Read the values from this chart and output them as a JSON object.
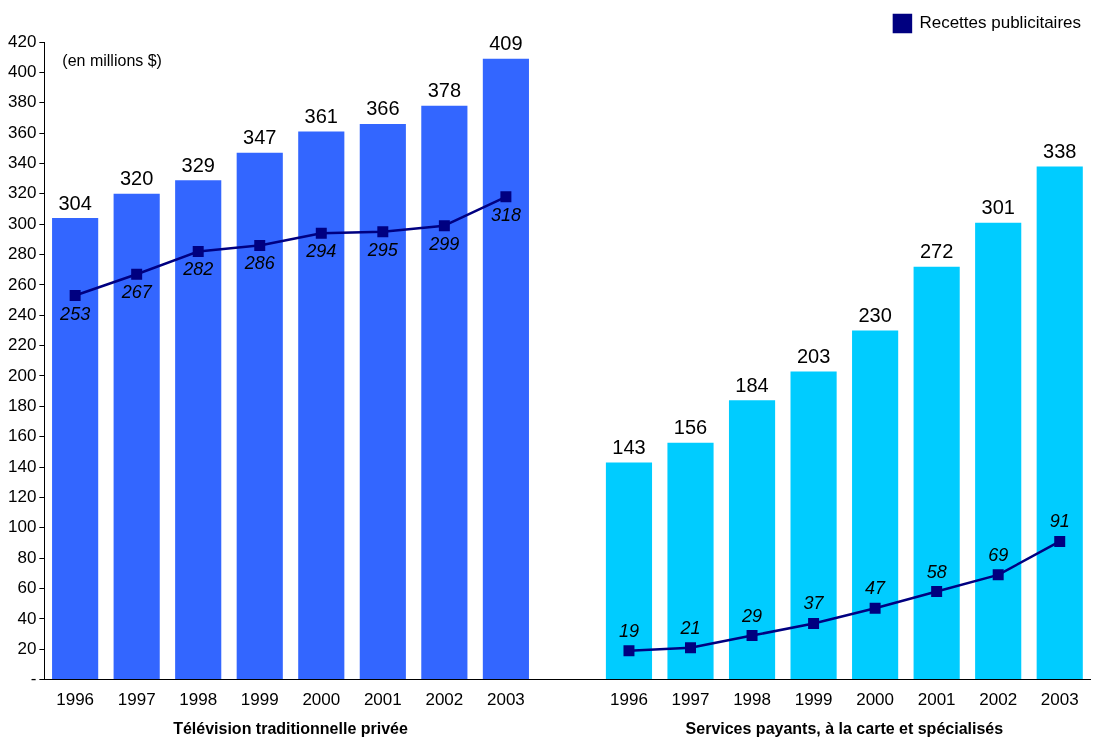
{
  "chart_data": {
    "type": "bar",
    "categories": [
      "1996",
      "1997",
      "1998",
      "1999",
      "2000",
      "2001",
      "2002",
      "2003",
      null,
      "1996",
      "1997",
      "1998",
      "1999",
      "2000",
      "2001",
      "2002",
      "2003"
    ],
    "series": [
      {
        "colors": [
          "#3366ff",
          "#3366ff",
          "#3366ff",
          "#3366ff",
          "#3366ff",
          "#3366ff",
          "#3366ff",
          "#3366ff",
          "#3366ff",
          "#00ccff",
          "#00ccff",
          "#00ccff",
          "#00ccff",
          "#00ccff",
          "#00ccff",
          "#00ccff",
          "#00ccff"
        ],
        "values": [
          304,
          320,
          329,
          347,
          361,
          366,
          378,
          409,
          null,
          143,
          156,
          184,
          203,
          230,
          272,
          301,
          338
        ]
      },
      {
        "type": "line",
        "name": "Recettes publicitaires",
        "color": "#000080",
        "values": [
          253,
          267,
          282,
          286,
          294,
          295,
          299,
          318,
          null,
          19,
          21,
          29,
          37,
          47,
          58,
          69,
          91
        ]
      }
    ],
    "ylim": [
      0,
      420
    ],
    "yticks": [
      {
        "value": 0,
        "label": "-"
      },
      20,
      40,
      60,
      80,
      100,
      120,
      140,
      160,
      180,
      200,
      220,
      240,
      260,
      280,
      300,
      320,
      340,
      360,
      380,
      400,
      420
    ],
    "grid": false,
    "legend": "top right",
    "marker": "square",
    "data_labels": true,
    "annotations": [
      "(en millions $)",
      "Télévision traditionnelle privée",
      "Services payants, à la carte et spécialisés"
    ]
  }
}
